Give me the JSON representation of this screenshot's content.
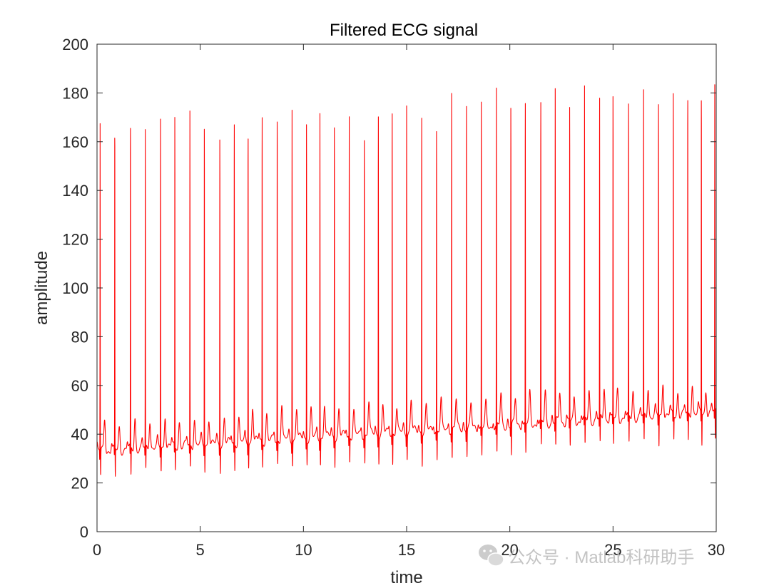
{
  "chart_data": {
    "type": "line",
    "title": "Filtered ECG signal",
    "xlabel": "time",
    "ylabel": "amplitude",
    "xlim": [
      0,
      30
    ],
    "ylim": [
      0,
      200
    ],
    "x_ticks": [
      0,
      5,
      10,
      15,
      20,
      25,
      30
    ],
    "y_ticks": [
      0,
      20,
      40,
      60,
      80,
      100,
      120,
      140,
      160,
      180,
      200
    ],
    "grid": false,
    "legend": "none",
    "box": true,
    "series": [
      {
        "color": "#ff0000",
        "beat_times": [
          0.15,
          0.86,
          1.62,
          2.34,
          3.08,
          3.77,
          4.5,
          5.2,
          5.95,
          6.65,
          7.32,
          8.0,
          8.73,
          9.45,
          10.15,
          10.8,
          11.5,
          12.22,
          12.95,
          13.63,
          14.3,
          15.0,
          15.73,
          16.45,
          17.18,
          17.9,
          18.62,
          19.35,
          20.05,
          20.75,
          21.5,
          22.2,
          22.9,
          23.62,
          24.35,
          25.0,
          25.75,
          26.48,
          27.2,
          27.92,
          28.62,
          29.28,
          29.93
        ],
        "r_peak_amplitudes": [
          167,
          171,
          172,
          166,
          170,
          173,
          172,
          172,
          168,
          173,
          171,
          176,
          177,
          175,
          174,
          173,
          173,
          171,
          167,
          176,
          178,
          177,
          175,
          170,
          181,
          182,
          180,
          181,
          180,
          181,
          180,
          181,
          179,
          181,
          182,
          183,
          179,
          180,
          181,
          183,
          184,
          185,
          182
        ],
        "baseline_start": 33,
        "baseline_end": 49
      }
    ]
  },
  "watermark": {
    "text": "公众号 · Matlab科研助手",
    "icon": "wechat-icon"
  }
}
